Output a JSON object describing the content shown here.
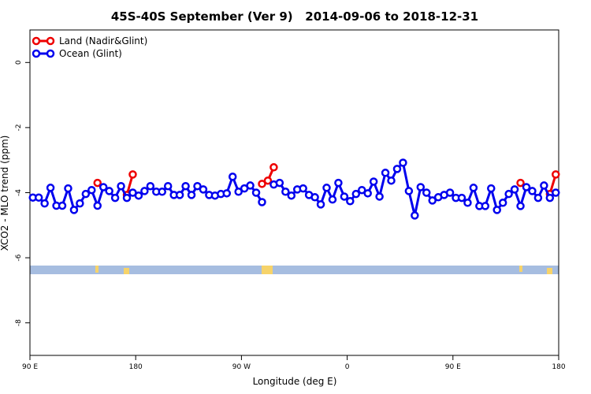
{
  "chart_data": {
    "type": "line",
    "title": "45S-40S September (Ver 9)   2014-09-06 to 2018-12-31",
    "xlabel": "Longitude (deg E)",
    "ylabel": "XCO2 - MLO trend (ppm)",
    "xlim": [
      90,
      540
    ],
    "xticks": [
      {
        "value": 90,
        "label": "90 E"
      },
      180,
      {
        "value": 270,
        "label": "90 W"
      },
      {
        "value": 360,
        "label": "0"
      },
      {
        "value": 450,
        "label": "90 E"
      },
      {
        "value": 540,
        "label": "180"
      }
    ],
    "ylim": [
      -9,
      1
    ],
    "yticks": [
      0,
      -2,
      -4,
      -6,
      -8
    ],
    "legend": "top-left",
    "series": [
      {
        "name": "Land (Nadir&Glint)",
        "color": "#ee0000",
        "x": [
          147.5,
          null,
          172.5,
          177.5,
          null,
          287.5,
          292.5,
          297.5,
          null,
          507.5,
          null,
          532.5,
          537.5
        ],
        "values": [
          -3.7,
          null,
          -4.07,
          -3.44,
          null,
          -3.73,
          -3.63,
          -3.22,
          null,
          -3.7,
          null,
          -4.04,
          -3.44
        ]
      },
      {
        "name": "Ocean (Glint)",
        "color": "#0000ee",
        "x": [
          92.5,
          97.5,
          102.5,
          107.5,
          112.5,
          117.5,
          122.5,
          127.5,
          132.5,
          137.5,
          142.5,
          147.5,
          152.5,
          157.5,
          162.5,
          167.5,
          172.5,
          177.5,
          182.5,
          187.5,
          192.5,
          197.5,
          202.5,
          207.5,
          212.5,
          217.5,
          222.5,
          227.5,
          232.5,
          237.5,
          242.5,
          247.5,
          252.5,
          257.5,
          262.5,
          267.5,
          272.5,
          277.5,
          282.5,
          287.5,
          292.5,
          297.5,
          302.5,
          307.5,
          312.5,
          317.5,
          322.5,
          327.5,
          332.5,
          337.5,
          342.5,
          347.5,
          352.5,
          357.5,
          362.5,
          367.5,
          372.5,
          377.5,
          382.5,
          387.5,
          392.5,
          397.5,
          402.5,
          407.5,
          412.5,
          417.5,
          422.5,
          427.5,
          432.5,
          437.5,
          442.5,
          447.5,
          452.5,
          457.5,
          462.5,
          467.5,
          472.5,
          477.5,
          482.5,
          487.5,
          492.5,
          497.5,
          502.5,
          507.5,
          512.5,
          517.5,
          522.5,
          527.5,
          532.5,
          537.5
        ],
        "values": [
          -4.15,
          -4.15,
          -4.33,
          -3.85,
          -4.4,
          -4.4,
          -3.87,
          -4.53,
          -4.33,
          -4.04,
          -3.92,
          -4.4,
          -3.83,
          -3.95,
          -4.16,
          -3.8,
          -4.16,
          -4.0,
          -4.09,
          -3.95,
          -3.8,
          -3.97,
          -3.97,
          -3.8,
          -4.07,
          -4.07,
          -3.8,
          -4.07,
          -3.8,
          -3.9,
          -4.07,
          -4.09,
          -4.04,
          -4.02,
          -3.51,
          -3.97,
          -3.87,
          -3.78,
          -4.0,
          -4.29,
          null,
          -3.75,
          -3.7,
          -3.97,
          -4.09,
          -3.9,
          -3.87,
          -4.07,
          -4.14,
          -4.36,
          -3.85,
          -4.21,
          -3.7,
          -4.12,
          -4.26,
          -4.04,
          -3.92,
          -4.02,
          -3.66,
          -4.12,
          -3.39,
          -3.63,
          -3.27,
          -3.08,
          -3.95,
          -4.7,
          -3.83,
          -4.0,
          -4.24,
          -4.14,
          -4.07,
          -4.0,
          -4.16,
          -4.16,
          -4.31,
          -3.85,
          -4.41,
          -4.41,
          -3.87,
          -4.53,
          -4.31,
          -4.04,
          -3.9,
          -4.41,
          -3.83,
          -3.95,
          -4.16,
          -3.78,
          -4.16,
          -4.0
        ]
      }
    ]
  }
}
